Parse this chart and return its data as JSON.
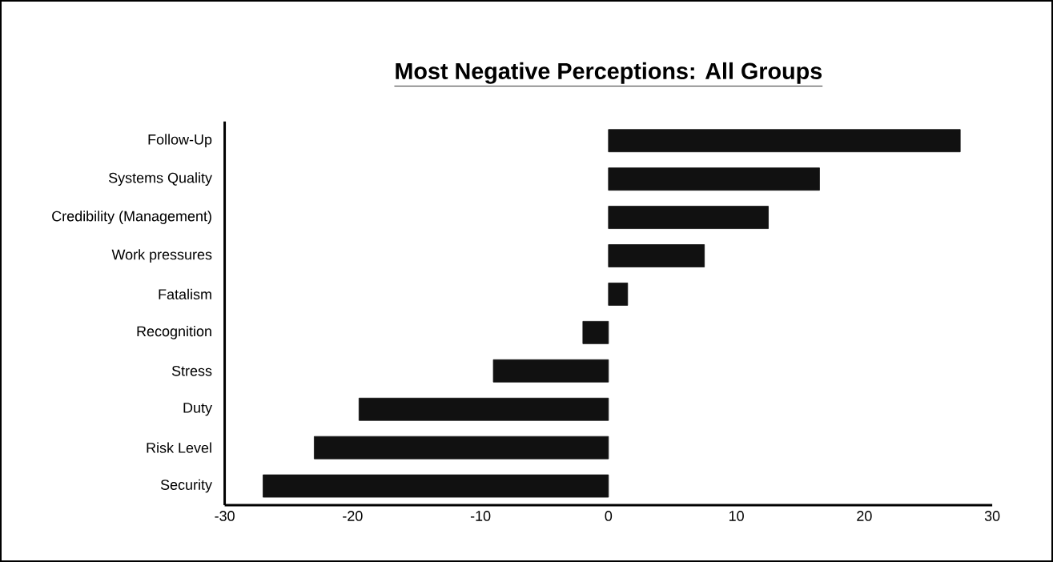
{
  "chart_data": {
    "type": "bar",
    "orientation": "horizontal",
    "title": "Most Negative Perceptions: All Groups",
    "categories": [
      "Follow-Up",
      "Systems Quality",
      "Credibility (Management)",
      "Work pressures",
      "Fatalism",
      "Recognition",
      "Stress",
      "Duty",
      "Risk Level",
      "Security"
    ],
    "values": [
      27.5,
      16.5,
      12.5,
      7.5,
      1.5,
      -2,
      -9,
      -19.5,
      -23,
      -27
    ],
    "color": "#111111",
    "xlim": [
      -30,
      30
    ],
    "xticks": [
      -30,
      -20,
      -10,
      0,
      10,
      20,
      30
    ]
  }
}
